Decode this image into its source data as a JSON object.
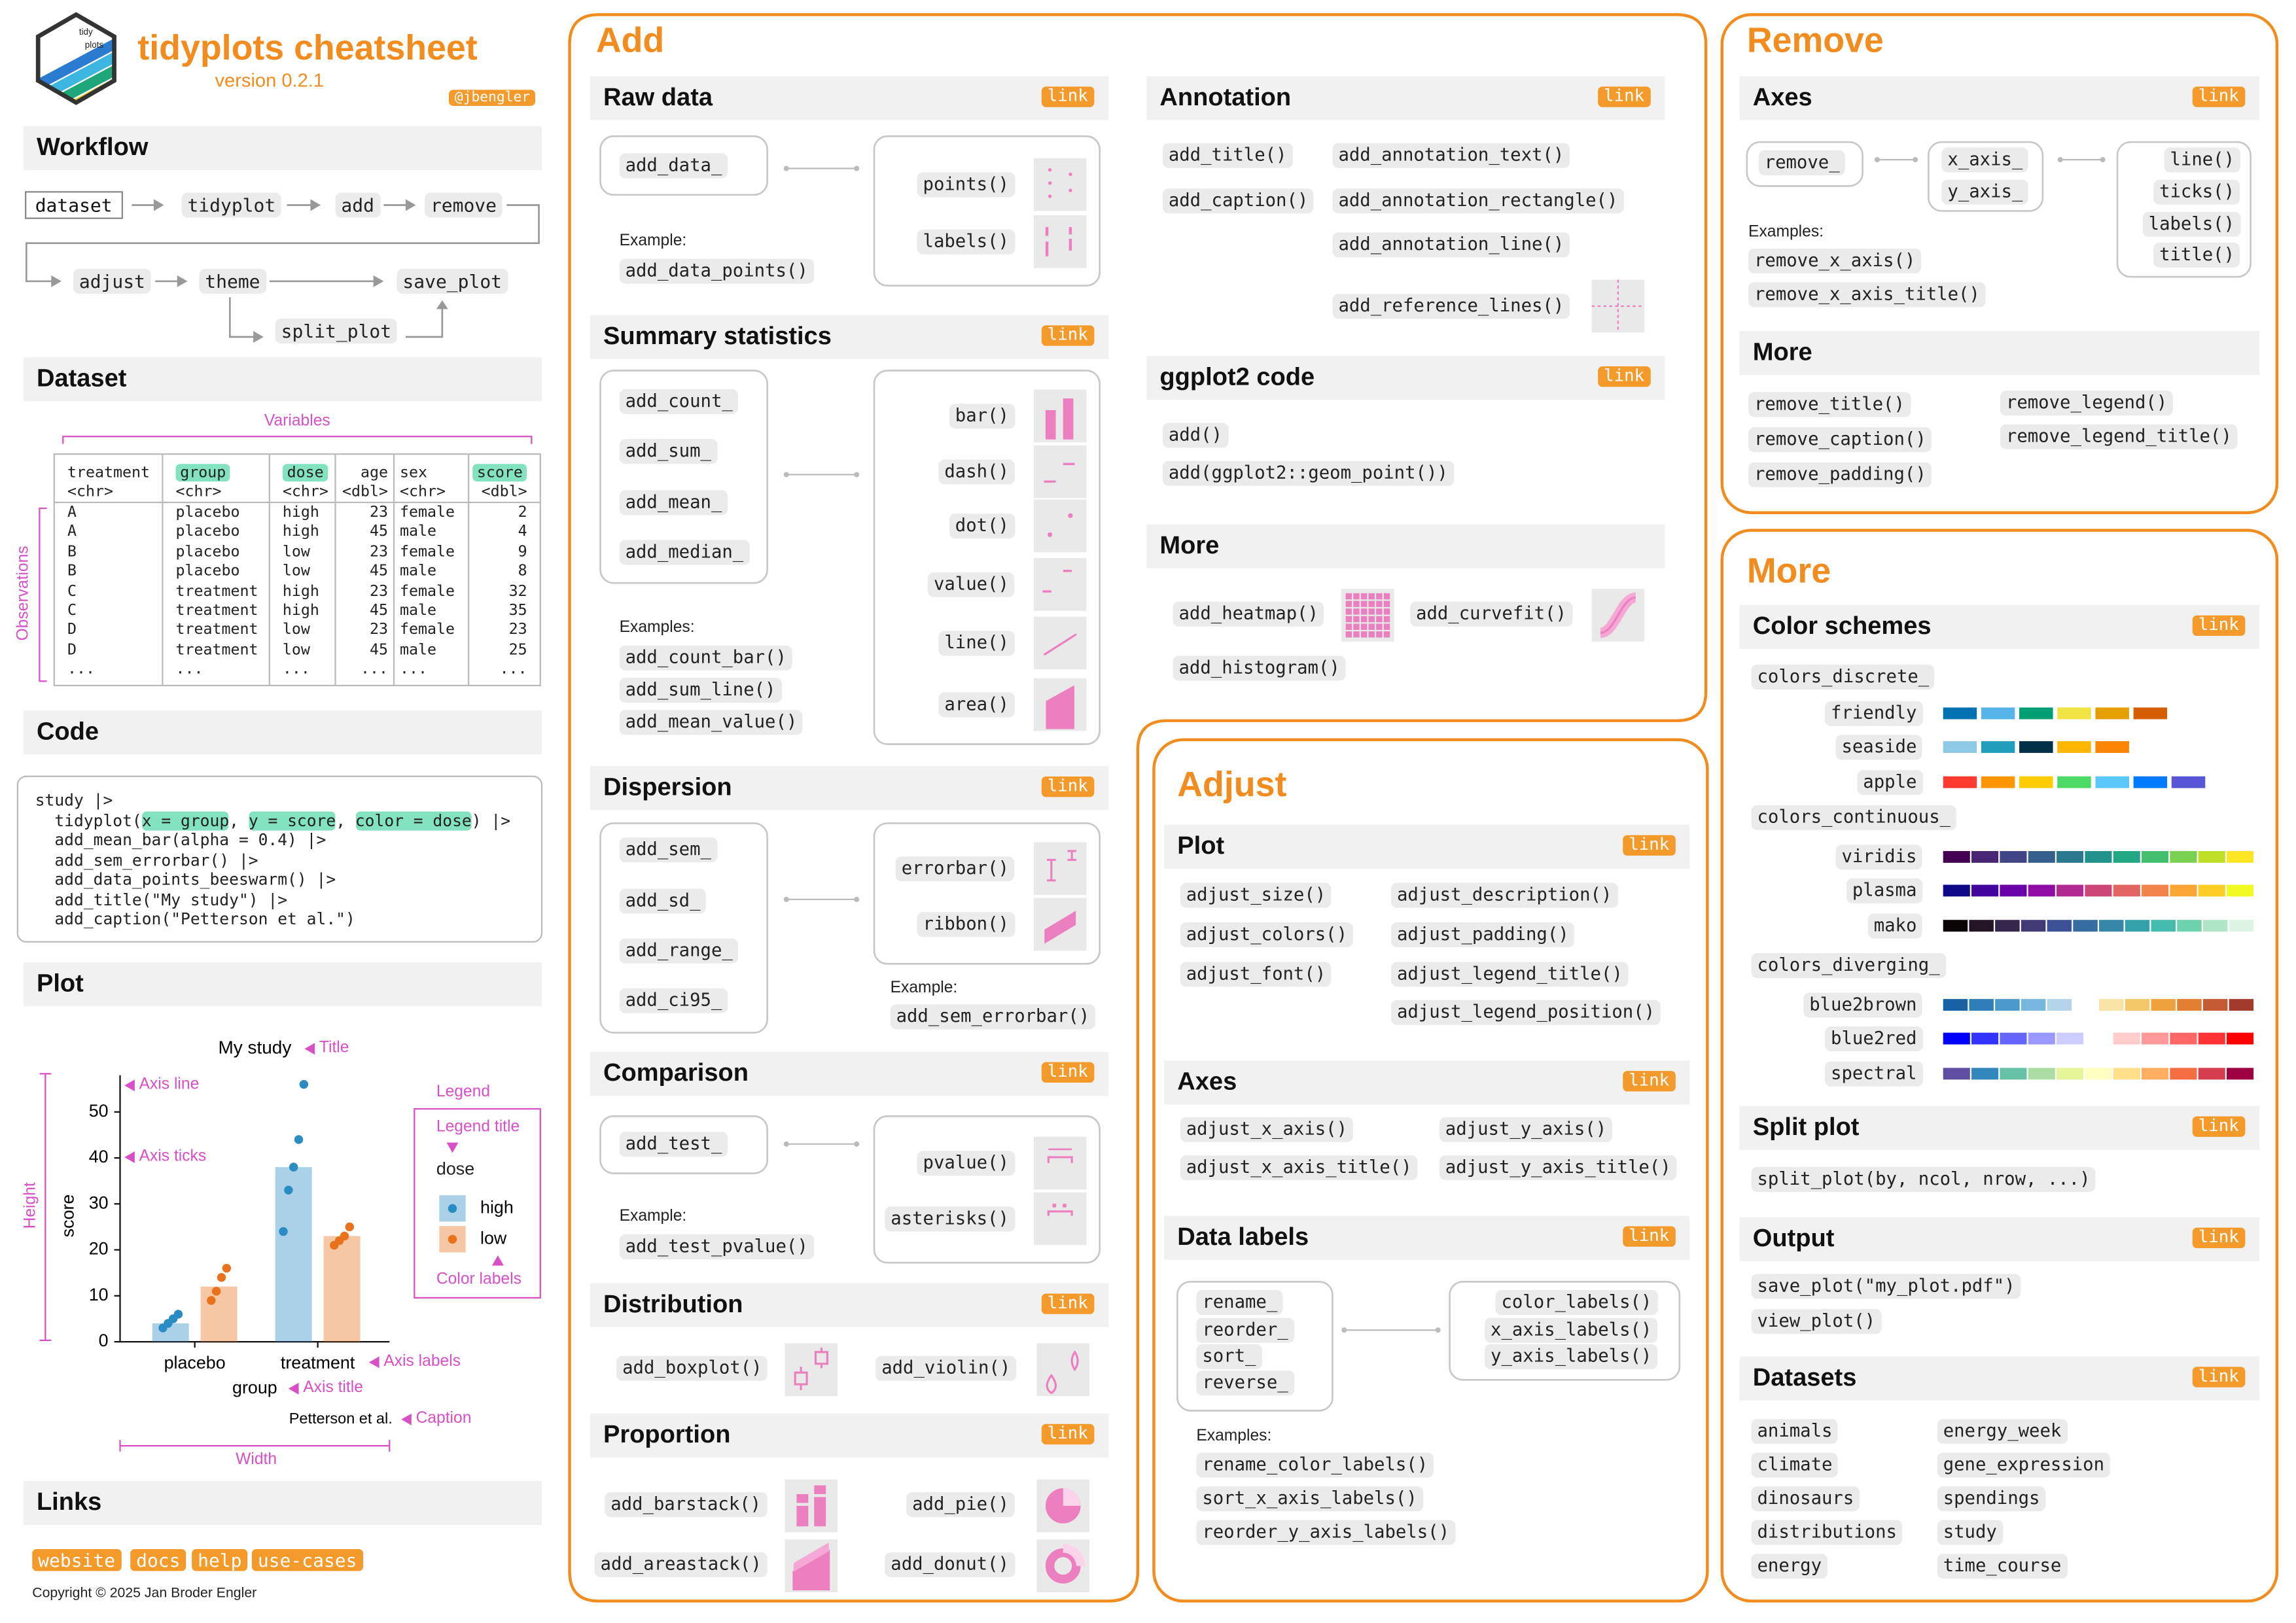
{
  "header": {
    "title": "tidyplots cheatsheet",
    "version": "version 0.2.1",
    "handle": "@jbengler",
    "logo_text": [
      "tidy",
      "plots"
    ]
  },
  "workflow": {
    "title": "Workflow",
    "steps": [
      "dataset",
      "tidyplot",
      "add",
      "remove",
      "adjust",
      "theme",
      "save_plot",
      "split_plot"
    ]
  },
  "dataset": {
    "title": "Dataset",
    "variables": "Variables",
    "observations": "Observations",
    "columns": [
      [
        "treatment",
        "<chr>"
      ],
      [
        "group",
        "<chr>"
      ],
      [
        "dose",
        "<chr>"
      ],
      [
        "age",
        "<dbl>"
      ],
      [
        "sex",
        "<chr>"
      ],
      [
        "score",
        "<dbl>"
      ]
    ],
    "highlighted": [
      false,
      true,
      true,
      false,
      false,
      true
    ],
    "rows": [
      [
        "A",
        "placebo",
        "high",
        23,
        "female",
        2
      ],
      [
        "A",
        "placebo",
        "high",
        45,
        "male",
        4
      ],
      [
        "B",
        "placebo",
        "low",
        23,
        "female",
        9
      ],
      [
        "B",
        "placebo",
        "low",
        45,
        "male",
        8
      ],
      [
        "C",
        "treatment",
        "high",
        23,
        "female",
        32
      ],
      [
        "C",
        "treatment",
        "high",
        45,
        "male",
        35
      ],
      [
        "D",
        "treatment",
        "low",
        23,
        "female",
        23
      ],
      [
        "D",
        "treatment",
        "low",
        45,
        "male",
        25
      ],
      [
        "...",
        "...",
        "...",
        "...",
        "...",
        "..."
      ]
    ]
  },
  "code": {
    "title": "Code",
    "lines": [
      [
        "study |>"
      ],
      [
        "  tidyplot(",
        {
          "hl": "x = group"
        },
        ", ",
        {
          "hl": "y = score"
        },
        ", ",
        {
          "hl": "color = dose"
        },
        ") |>"
      ],
      [
        "  add_mean_bar(alpha = 0.4) |>"
      ],
      [
        "  add_sem_errorbar() |>"
      ],
      [
        "  add_data_points_beeswarm() |>"
      ],
      [
        "  add_title(\"My study\") |>"
      ],
      [
        "  add_caption(\"Petterson et al.\")"
      ]
    ]
  },
  "plot": {
    "title": "Plot",
    "chart": {
      "type": "bar",
      "title": "My study",
      "x_label": "group",
      "y_label": "score",
      "caption": "Petterson et al.",
      "legend_title": "dose",
      "categories": [
        "placebo",
        "treatment"
      ],
      "series": [
        {
          "name": "high",
          "color": "#2b8cc4",
          "values": [
            4,
            38
          ],
          "points": [
            [
              3,
              4,
              5,
              6
            ],
            [
              24,
              33,
              38,
              44,
              56
            ]
          ]
        },
        {
          "name": "low",
          "color": "#e8731c",
          "values": [
            12,
            23
          ],
          "points": [
            [
              9,
              11,
              14,
              16
            ],
            [
              21,
              22,
              23,
              25
            ]
          ]
        }
      ],
      "ylim": [
        0,
        58
      ],
      "yticks": [
        0,
        10,
        20,
        30,
        40,
        50
      ],
      "annotations": [
        "Title",
        "Axis line",
        "Axis ticks",
        "Legend",
        "Legend title",
        "Color labels",
        "Axis labels",
        "Axis title",
        "Caption",
        "Height",
        "Width"
      ]
    }
  },
  "links": {
    "title": "Links",
    "items": [
      "website",
      "docs",
      "help",
      "use-cases"
    ],
    "copyright": "Copyright © 2025 Jan Broder Engler"
  },
  "add": {
    "title": "Add",
    "raw_data": {
      "title": "Raw data",
      "link": "link",
      "functions": [
        "add_data_"
      ],
      "geoms": [
        "points()",
        "labels()"
      ],
      "example_label": "Example:",
      "examples": [
        "add_data_points()"
      ]
    },
    "summary": {
      "title": "Summary statistics",
      "link": "link",
      "functions": [
        "add_count_",
        "add_sum_",
        "add_mean_",
        "add_median_"
      ],
      "geoms": [
        "bar()",
        "dash()",
        "dot()",
        "value()",
        "line()",
        "area()"
      ],
      "example_label": "Examples:",
      "examples": [
        "add_count_bar()",
        "add_sum_line()",
        "add_mean_value()"
      ]
    },
    "dispersion": {
      "title": "Dispersion",
      "link": "link",
      "functions": [
        "add_sem_",
        "add_sd_",
        "add_range_",
        "add_ci95_"
      ],
      "geoms": [
        "errorbar()",
        "ribbon()"
      ],
      "example_label": "Example:",
      "examples": [
        "add_sem_errorbar()"
      ]
    },
    "comparison": {
      "title": "Comparison",
      "link": "link",
      "functions": [
        "add_test_"
      ],
      "geoms": [
        "pvalue()",
        "asterisks()"
      ],
      "example_label": "Example:",
      "examples": [
        "add_test_pvalue()"
      ]
    },
    "distribution": {
      "title": "Distribution",
      "link": "link",
      "functions": [
        "add_boxplot()",
        "add_violin()"
      ]
    },
    "proportion": {
      "title": "Proportion",
      "link": "link",
      "functions": [
        "add_barstack()",
        "add_pie()",
        "add_areastack()",
        "add_donut()"
      ]
    },
    "annotation": {
      "title": "Annotation",
      "link": "link",
      "functions": [
        "add_title()",
        "add_caption()",
        "add_annotation_text()",
        "add_annotation_rectangle()",
        "add_annotation_line()",
        "add_reference_lines()"
      ]
    },
    "ggplot2": {
      "title": "ggplot2 code",
      "link": "link",
      "functions": [
        "add()",
        "add(ggplot2::geom_point())"
      ]
    },
    "more": {
      "title": "More",
      "functions": [
        "add_heatmap()",
        "add_curvefit()",
        "add_histogram()"
      ]
    }
  },
  "adjust": {
    "title": "Adjust",
    "plot": {
      "title": "Plot",
      "link": "link",
      "functions": [
        "adjust_size()",
        "adjust_colors()",
        "adjust_font()",
        "adjust_description()",
        "adjust_padding()",
        "adjust_legend_title()",
        "adjust_legend_position()"
      ]
    },
    "axes": {
      "title": "Axes",
      "link": "link",
      "functions": [
        "adjust_x_axis()",
        "adjust_x_axis_title()",
        "adjust_y_axis()",
        "adjust_y_axis_title()"
      ]
    },
    "data_labels": {
      "title": "Data labels",
      "link": "link",
      "functions": [
        "rename_",
        "reorder_",
        "sort_",
        "reverse_"
      ],
      "targets": [
        "color_labels()",
        "x_axis_labels()",
        "y_axis_labels()"
      ],
      "example_label": "Examples:",
      "examples": [
        "rename_color_labels()",
        "sort_x_axis_labels()",
        "reorder_y_axis_labels()"
      ]
    }
  },
  "remove": {
    "title": "Remove",
    "axes": {
      "title": "Axes",
      "link": "link",
      "functions": [
        "remove_"
      ],
      "targets": [
        "x_axis_",
        "y_axis_"
      ],
      "parts": [
        "line()",
        "ticks()",
        "labels()",
        "title()"
      ],
      "example_label": "Examples:",
      "examples": [
        "remove_x_axis()",
        "remove_x_axis_title()"
      ]
    },
    "more": {
      "title": "More",
      "functions": [
        "remove_title()",
        "remove_caption()",
        "remove_padding()",
        "remove_legend()",
        "remove_legend_title()"
      ]
    }
  },
  "more": {
    "title": "More",
    "color_schemes": {
      "title": "Color schemes",
      "link": "link",
      "groups": [
        {
          "name": "colors_discrete_",
          "kind": "discrete",
          "schemes": [
            {
              "name": "friendly",
              "colors": [
                "#0072B2",
                "#56B4E9",
                "#009E73",
                "#F0E442",
                "#E69F00",
                "#D55E00"
              ]
            },
            {
              "name": "seaside",
              "colors": [
                "#8ecae6",
                "#219ebc",
                "#023047",
                "#ffb703",
                "#fb8500"
              ]
            },
            {
              "name": "apple",
              "colors": [
                "#ff3b30",
                "#ff9500",
                "#ffcc00",
                "#4cd964",
                "#5ac8fa",
                "#007aff",
                "#5856d6"
              ]
            }
          ]
        },
        {
          "name": "colors_continuous_",
          "kind": "continuous",
          "schemes": [
            {
              "name": "viridis",
              "colors": [
                "#440154",
                "#482475",
                "#414487",
                "#355f8d",
                "#2a788e",
                "#21918c",
                "#22a884",
                "#44bf70",
                "#7ad151",
                "#bddf26",
                "#fde725"
              ]
            },
            {
              "name": "plasma",
              "colors": [
                "#0d0887",
                "#41049d",
                "#6a00a8",
                "#8f0da4",
                "#b12a90",
                "#cc4778",
                "#e16462",
                "#f2844b",
                "#fca636",
                "#fcce25",
                "#f0f921"
              ]
            },
            {
              "name": "mako",
              "colors": [
                "#0b0405",
                "#231526",
                "#35264c",
                "#403a75",
                "#3d5296",
                "#366da0",
                "#3487a6",
                "#35a1ab",
                "#43bbad",
                "#6cd3ad",
                "#b0e4c7",
                "#def5e5"
              ]
            }
          ]
        },
        {
          "name": "colors_diverging_",
          "kind": "continuous",
          "schemes": [
            {
              "name": "blue2brown",
              "colors": [
                "#1961a5",
                "#2f7eb9",
                "#4b9acd",
                "#77b6de",
                "#b4d4ec",
                "#ffffff",
                "#f7e4a6",
                "#f4c76b",
                "#eea33f",
                "#e07e31",
                "#c35a33",
                "#a33b2d"
              ]
            },
            {
              "name": "blue2red",
              "colors": [
                "#0000ff",
                "#3333ff",
                "#6666ff",
                "#9999ff",
                "#ccccff",
                "#ffffff",
                "#ffcccc",
                "#ff9999",
                "#ff6666",
                "#ff3333",
                "#ff0000"
              ]
            },
            {
              "name": "spectral",
              "colors": [
                "#5e4fa2",
                "#3288bd",
                "#66c2a5",
                "#abdda4",
                "#e6f598",
                "#ffffbf",
                "#fee08b",
                "#fdae61",
                "#f46d43",
                "#d53e4f",
                "#9e0142"
              ]
            }
          ]
        }
      ]
    },
    "split_plot": {
      "title": "Split plot",
      "link": "link",
      "functions": [
        "split_plot(by, ncol, nrow, ...)"
      ]
    },
    "output": {
      "title": "Output",
      "link": "link",
      "functions": [
        "save_plot(\"my_plot.pdf\")",
        "view_plot()"
      ]
    },
    "datasets": {
      "title": "Datasets",
      "link": "link",
      "items": [
        "animals",
        "climate",
        "dinosaurs",
        "distributions",
        "energy",
        "energy_week",
        "gene_expression",
        "spendings",
        "study",
        "time_course"
      ]
    }
  }
}
